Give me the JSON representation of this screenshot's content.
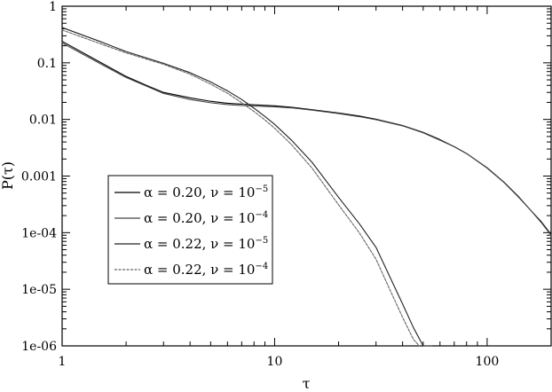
{
  "chart_data": {
    "type": "line",
    "title": "",
    "xlabel": "τ",
    "ylabel": "P(τ)",
    "xscale": "log",
    "yscale": "log",
    "xlim": [
      1,
      200
    ],
    "ylim": [
      1e-06,
      1
    ],
    "grid": false,
    "legend_position": "center-left",
    "x_ticks": [
      {
        "value": 1,
        "label": "1"
      },
      {
        "value": 10,
        "label": "10"
      },
      {
        "value": 100,
        "label": "100"
      }
    ],
    "y_ticks": [
      {
        "value": 1,
        "label": "1"
      },
      {
        "value": 0.1,
        "label": "0.1"
      },
      {
        "value": 0.01,
        "label": "0.01"
      },
      {
        "value": 0.001,
        "label": "0.001"
      },
      {
        "value": 0.0001,
        "label": "1e-04"
      },
      {
        "value": 1e-05,
        "label": "1e-05"
      },
      {
        "value": 1e-06,
        "label": "1e-06"
      }
    ],
    "series": [
      {
        "legend": {
          "alpha": "α = 0.20, ν = 10",
          "exp": "−5"
        },
        "color": "#000000",
        "dash": "",
        "x": [
          1,
          1.5,
          2,
          2.5,
          3,
          4,
          5,
          6,
          7,
          8,
          10,
          12,
          15,
          20,
          25,
          30,
          40,
          50,
          60,
          70,
          80,
          100,
          120,
          140,
          160,
          180,
          200
        ],
        "y": [
          0.24,
          0.104,
          0.0575,
          0.0398,
          0.03,
          0.0241,
          0.0209,
          0.0193,
          0.0186,
          0.0181,
          0.0174,
          0.0164,
          0.0149,
          0.013,
          0.0115,
          0.0101,
          0.0078,
          0.0059,
          0.0044,
          0.0033,
          0.0025,
          0.0014,
          0.00078,
          0.00044,
          0.00025,
          0.000155,
          9.3e-05
        ]
      },
      {
        "legend": {
          "alpha": "α = 0.20, ν = 10",
          "exp": "−4"
        },
        "color": "#444444",
        "dash": "",
        "x": [
          1,
          1.5,
          2,
          2.5,
          3,
          4,
          5,
          6,
          7,
          8,
          10,
          12,
          15,
          20,
          25,
          30,
          40,
          50,
          60,
          70,
          80,
          100,
          120,
          140,
          160,
          180,
          200
        ],
        "y": [
          0.225,
          0.098,
          0.055,
          0.0385,
          0.0288,
          0.0225,
          0.0197,
          0.0183,
          0.0176,
          0.0172,
          0.0167,
          0.016,
          0.0146,
          0.0127,
          0.0112,
          0.0099,
          0.0077,
          0.0058,
          0.0043,
          0.0033,
          0.0025,
          0.00138,
          0.00077,
          0.00043,
          0.00025,
          0.00015,
          9e-05
        ]
      },
      {
        "legend": {
          "alpha": "α = 0.22, ν = 10",
          "exp": "−5"
        },
        "color": "#222222",
        "dash": "",
        "x": [
          1,
          1.5,
          2,
          3,
          4,
          5,
          6,
          7,
          8,
          9,
          10,
          12,
          15,
          20,
          25,
          30,
          35,
          40,
          45,
          50,
          55
        ],
        "y": [
          0.42,
          0.24,
          0.158,
          0.098,
          0.067,
          0.046,
          0.032,
          0.0225,
          0.0158,
          0.0113,
          0.0082,
          0.0043,
          0.00175,
          0.00042,
          0.000145,
          5.5e-05,
          1.6e-05,
          5.5e-06,
          2.1e-06,
          1e-06,
          1e-06
        ]
      },
      {
        "legend": {
          "alpha": "α = 0.22, ν = 10",
          "exp": "−4"
        },
        "color": "#666666",
        "dash": "3 1.5",
        "x": [
          1,
          1.5,
          2,
          3,
          4,
          5,
          6,
          7,
          8,
          9,
          10,
          12,
          15,
          20,
          25,
          30,
          35,
          40,
          45,
          48
        ],
        "y": [
          0.38,
          0.22,
          0.15,
          0.094,
          0.063,
          0.042,
          0.029,
          0.0197,
          0.0138,
          0.0098,
          0.007,
          0.0036,
          0.00138,
          0.00031,
          0.0001,
          3.4e-05,
          9.5e-06,
          3.2e-06,
          1.3e-06,
          1e-06
        ]
      }
    ]
  }
}
